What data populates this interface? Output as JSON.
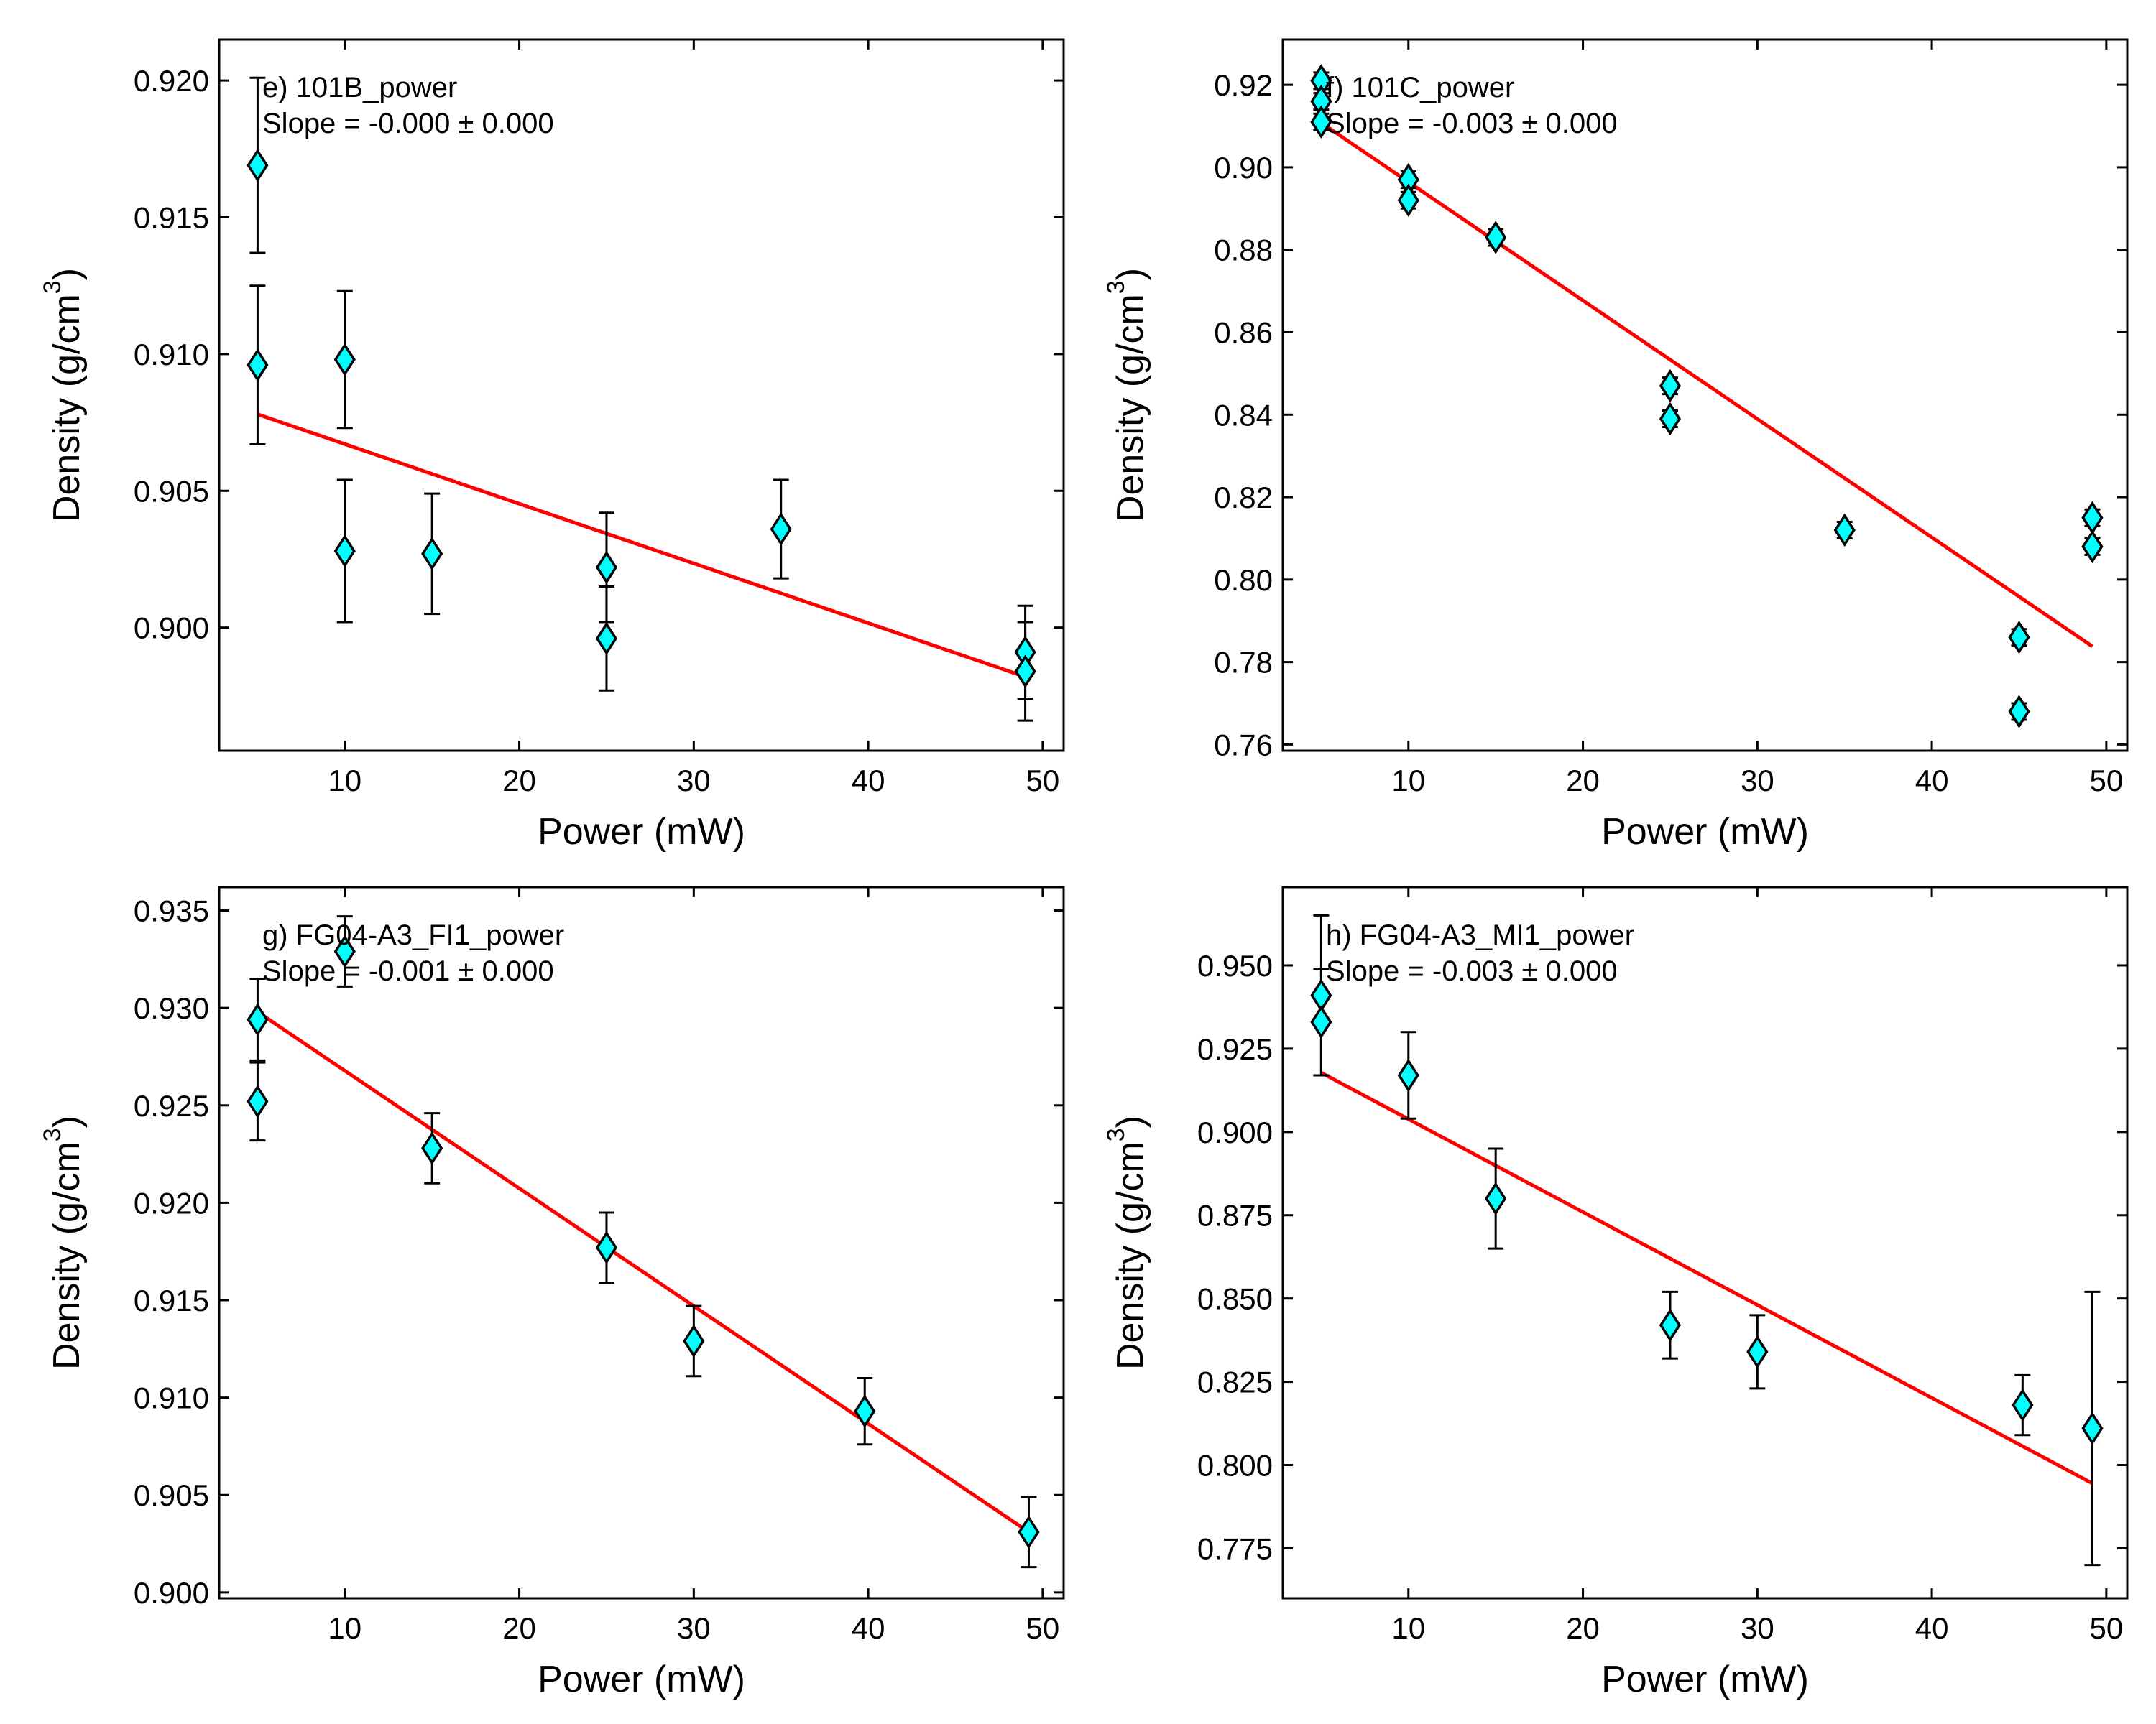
{
  "chart_data": [
    {
      "type": "scatter",
      "title": "",
      "annotation": "e) 101B_power",
      "slope_text": "Slope = -0.000 ± 0.000",
      "xlabel": "Power (mW)",
      "ylabel_main": "Density (g/cm",
      "ylabel_sup": "3",
      "ylabel_close": ")",
      "xlim": [
        2.8,
        51.2
      ],
      "ylim": [
        0.8955,
        0.9215
      ],
      "xticks": [
        10,
        20,
        30,
        40,
        50
      ],
      "xtick_labels": [
        "10",
        "20",
        "30",
        "40",
        "50"
      ],
      "yticks": [
        0.9,
        0.905,
        0.91,
        0.915,
        0.92
      ],
      "ytick_labels": [
        "0.900",
        "0.905",
        "0.910",
        "0.915",
        "0.920"
      ],
      "grid": false,
      "marker_color": "#00FFFF",
      "line_color": "#FF0000",
      "points": [
        {
          "x": 5,
          "y": 0.9169,
          "err": 0.0032
        },
        {
          "x": 5,
          "y": 0.9096,
          "err": 0.0029
        },
        {
          "x": 10,
          "y": 0.9098,
          "err": 0.0025
        },
        {
          "x": 10,
          "y": 0.9028,
          "err": 0.0026
        },
        {
          "x": 15,
          "y": 0.9027,
          "err": 0.0022
        },
        {
          "x": 25,
          "y": 0.9022,
          "err": 0.002
        },
        {
          "x": 25,
          "y": 0.8996,
          "err": 0.0019
        },
        {
          "x": 35,
          "y": 0.9036,
          "err": 0.0018
        },
        {
          "x": 49,
          "y": 0.8991,
          "err": 0.0017
        },
        {
          "x": 49,
          "y": 0.8984,
          "err": 0.0018
        }
      ],
      "fit": {
        "x": [
          5,
          49
        ],
        "y": [
          0.9078,
          0.8982
        ]
      }
    },
    {
      "type": "scatter",
      "title": "",
      "annotation": "f) 101C_power",
      "slope_text": "Slope = -0.003 ± 0.000",
      "xlabel": "Power (mW)",
      "ylabel_main": "Density (g/cm",
      "ylabel_sup": "3",
      "ylabel_close": ")",
      "xlim": [
        2.8,
        51.2
      ],
      "ylim": [
        0.7585,
        0.931
      ],
      "xticks": [
        10,
        20,
        30,
        40,
        50
      ],
      "xtick_labels": [
        "10",
        "20",
        "30",
        "40",
        "50"
      ],
      "yticks": [
        0.76,
        0.78,
        0.8,
        0.82,
        0.84,
        0.86,
        0.88,
        0.9,
        0.92
      ],
      "ytick_labels": [
        "0.76",
        "0.78",
        "0.80",
        "0.82",
        "0.84",
        "0.86",
        "0.88",
        "0.90",
        "0.92"
      ],
      "grid": false,
      "marker_color": "#00FFFF",
      "line_color": "#FF0000",
      "points": [
        {
          "x": 5,
          "y": 0.921,
          "err": 0.002
        },
        {
          "x": 5,
          "y": 0.916,
          "err": 0.002
        },
        {
          "x": 5,
          "y": 0.911,
          "err": 0.002
        },
        {
          "x": 10,
          "y": 0.897,
          "err": 0.002
        },
        {
          "x": 10,
          "y": 0.892,
          "err": 0.002
        },
        {
          "x": 15,
          "y": 0.883,
          "err": 0.002
        },
        {
          "x": 25,
          "y": 0.847,
          "err": 0.002
        },
        {
          "x": 25,
          "y": 0.839,
          "err": 0.002
        },
        {
          "x": 35,
          "y": 0.812,
          "err": 0.002
        },
        {
          "x": 45,
          "y": 0.786,
          "err": 0.002
        },
        {
          "x": 45,
          "y": 0.768,
          "err": 0.002
        },
        {
          "x": 49.2,
          "y": 0.815,
          "err": 0.002
        },
        {
          "x": 49.2,
          "y": 0.808,
          "err": 0.002
        }
      ],
      "fit": {
        "x": [
          5,
          49.2
        ],
        "y": [
          0.9108,
          0.7838
        ]
      }
    },
    {
      "type": "scatter",
      "title": "",
      "annotation": "g) FG04-A3_FI1_power",
      "slope_text": "Slope = -0.001 ± 0.000",
      "xlabel": "Power (mW)",
      "ylabel_main": "Density (g/cm",
      "ylabel_sup": "3",
      "ylabel_close": ")",
      "xlim": [
        2.8,
        51.2
      ],
      "ylim": [
        0.8997,
        0.9362
      ],
      "xticks": [
        10,
        20,
        30,
        40,
        50
      ],
      "xtick_labels": [
        "10",
        "20",
        "30",
        "40",
        "50"
      ],
      "yticks": [
        0.9,
        0.905,
        0.91,
        0.915,
        0.92,
        0.925,
        0.93,
        0.935
      ],
      "ytick_labels": [
        "0.900",
        "0.905",
        "0.910",
        "0.915",
        "0.920",
        "0.925",
        "0.930",
        "0.935"
      ],
      "grid": false,
      "marker_color": "#00FFFF",
      "line_color": "#FF0000",
      "points": [
        {
          "x": 5,
          "y": 0.9294,
          "err": 0.0021
        },
        {
          "x": 5,
          "y": 0.9252,
          "err": 0.002
        },
        {
          "x": 10,
          "y": 0.9329,
          "err": 0.0018
        },
        {
          "x": 15,
          "y": 0.9228,
          "err": 0.0018
        },
        {
          "x": 25,
          "y": 0.9177,
          "err": 0.0018
        },
        {
          "x": 30,
          "y": 0.9129,
          "err": 0.0018
        },
        {
          "x": 39.8,
          "y": 0.9093,
          "err": 0.0017
        },
        {
          "x": 49.2,
          "y": 0.9031,
          "err": 0.0018
        }
      ],
      "fit": {
        "x": [
          5,
          49.2
        ],
        "y": [
          0.9298,
          0.9031
        ]
      }
    },
    {
      "type": "scatter",
      "title": "",
      "annotation": "h) FG04-A3_MI1_power",
      "slope_text": "Slope = -0.003 ± 0.000",
      "xlabel": "Power (mW)",
      "ylabel_main": "Density (g/cm",
      "ylabel_sup": "3",
      "ylabel_close": ")",
      "xlim": [
        2.8,
        51.2
      ],
      "ylim": [
        0.76,
        0.9735
      ],
      "xticks": [
        10,
        20,
        30,
        40,
        50
      ],
      "xtick_labels": [
        "10",
        "20",
        "30",
        "40",
        "50"
      ],
      "yticks": [
        0.775,
        0.8,
        0.825,
        0.85,
        0.875,
        0.9,
        0.925,
        0.95
      ],
      "ytick_labels": [
        "0.775",
        "0.800",
        "0.825",
        "0.850",
        "0.875",
        "0.900",
        "0.925",
        "0.950"
      ],
      "grid": false,
      "marker_color": "#00FFFF",
      "line_color": "#FF0000",
      "points": [
        {
          "x": 5,
          "y": 0.941,
          "err": 0.024
        },
        {
          "x": 5,
          "y": 0.933,
          "err": 0.016
        },
        {
          "x": 10,
          "y": 0.917,
          "err": 0.013
        },
        {
          "x": 15,
          "y": 0.88,
          "err": 0.015
        },
        {
          "x": 25,
          "y": 0.842,
          "err": 0.01
        },
        {
          "x": 30,
          "y": 0.834,
          "err": 0.011
        },
        {
          "x": 45.2,
          "y": 0.818,
          "err": 0.009
        },
        {
          "x": 49.2,
          "y": 0.811,
          "err": 0.041
        }
      ],
      "fit": {
        "x": [
          5,
          49.2
        ],
        "y": [
          0.9178,
          0.7945
        ]
      }
    }
  ]
}
